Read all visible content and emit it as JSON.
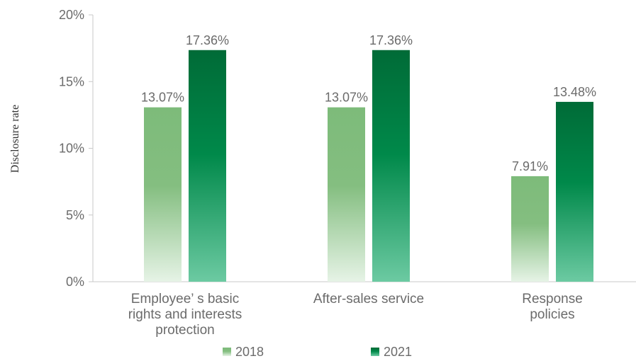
{
  "chart_data": {
    "type": "bar",
    "ylabel": "Disclosure rate",
    "ylim": [
      0,
      20
    ],
    "yticks": [
      "0%",
      "5%",
      "10%",
      "15%",
      "20%"
    ],
    "categories": [
      [
        "Employee’ s basic",
        "rights and interests",
        "protection"
      ],
      [
        "After-sales service"
      ],
      [
        "Response",
        "policies"
      ]
    ],
    "series": [
      {
        "name": "2018",
        "values": [
          13.07,
          13.07,
          7.91
        ],
        "labels": [
          "13.07%",
          "13.07%",
          "7.91%"
        ]
      },
      {
        "name": "2021",
        "values": [
          17.36,
          17.36,
          13.48
        ],
        "labels": [
          "17.36%",
          "17.36%",
          "13.48%"
        ]
      }
    ],
    "legend_position": "bottom",
    "grid": false,
    "colors": {
      "2018_top": "#7dbb7a",
      "2018_bottom": "#e6f3e6",
      "2021_top": "#006b37",
      "2021_mid": "#00894a",
      "2021_bottom": "#6ccaa2"
    }
  }
}
